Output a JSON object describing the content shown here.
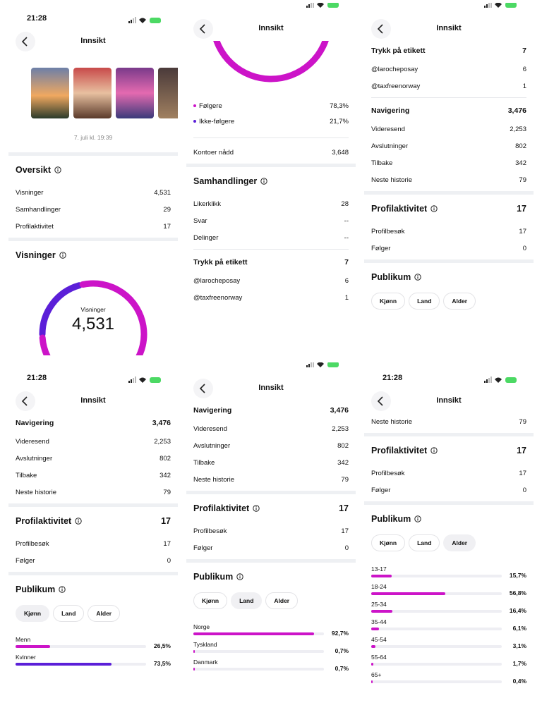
{
  "panels": [
    {
      "time": "21:28",
      "title": "Innsikt",
      "date": "7. juli kl. 19:39",
      "items": [
        {
          "section": "Oversikt"
        },
        {
          "label": "Visninger",
          "value": "4,531"
        },
        {
          "label": "Samhandlinger",
          "value": "29"
        },
        {
          "label": "Profilaktivitet",
          "value": "17"
        },
        {
          "section": "Visninger"
        },
        {
          "gauge": {
            "label": "Visninger",
            "value": "4,531"
          }
        }
      ]
    },
    {
      "title": "Innsikt",
      "items": [
        {
          "legend": [
            {
              "label": "Følgere",
              "value": 78.3,
              "value_label": "78,3%",
              "color": "#cc14c8"
            },
            {
              "label": "Ikke-følgere",
              "value": 21.7,
              "value_label": "21,7%",
              "color": "#5b1fd8"
            }
          ]
        },
        {
          "label": "Kontoer nådd",
          "value": "3,648"
        },
        {
          "section": "Samhandlinger"
        },
        {
          "label": "Likerklikk",
          "value": "28"
        },
        {
          "label": "Svar",
          "value": "--"
        },
        {
          "label": "Delinger",
          "value": "--"
        },
        {
          "group": "Trykk på etikett",
          "total": "7"
        },
        {
          "label": "@larocheposay",
          "value": "6"
        },
        {
          "label": "@taxfreenorway",
          "value": "1"
        }
      ]
    },
    {
      "title": "Innsikt",
      "items": [
        {
          "group": "Trykk på etikett",
          "total": "7"
        },
        {
          "label": "@larocheposay",
          "value": "6"
        },
        {
          "label": "@taxfreenorway",
          "value": "1"
        },
        {
          "group": "Navigering",
          "total": "3,476"
        },
        {
          "label": "Videresend",
          "value": "2,253"
        },
        {
          "label": "Avslutninger",
          "value": "802"
        },
        {
          "label": "Tilbake",
          "value": "342"
        },
        {
          "label": "Neste historie",
          "value": "79"
        },
        {
          "section": "Profilaktivitet",
          "total": "17"
        },
        {
          "label": "Profilbesøk",
          "value": "17"
        },
        {
          "label": "Følger",
          "value": "0"
        },
        {
          "section": "Publikum"
        },
        {
          "tabs": [
            "Kjønn",
            "Land",
            "Alder"
          ]
        }
      ]
    },
    {
      "time": "21:28",
      "title": "Innsikt",
      "items": [
        {
          "group": "Navigering",
          "total": "3,476"
        },
        {
          "label": "Videresend",
          "value": "2,253"
        },
        {
          "label": "Avslutninger",
          "value": "802"
        },
        {
          "label": "Tilbake",
          "value": "342"
        },
        {
          "label": "Neste historie",
          "value": "79"
        },
        {
          "section": "Profilaktivitet",
          "total": "17"
        },
        {
          "label": "Profilbesøk",
          "value": "17"
        },
        {
          "label": "Følger",
          "value": "0"
        },
        {
          "section": "Publikum"
        },
        {
          "tabs": [
            "Kjønn",
            "Land",
            "Alder"
          ],
          "selected": 0
        },
        {
          "bars": [
            {
              "label": "Menn",
              "value": 26.5,
              "value_label": "26,5%",
              "color": "#cc14c8"
            },
            {
              "label": "Kvinner",
              "value": 73.5,
              "value_label": "73,5%",
              "color": "#5b1fd8"
            }
          ]
        }
      ]
    },
    {
      "title": "Innsikt",
      "items": [
        {
          "group": "Navigering",
          "total": "3,476"
        },
        {
          "label": "Videresend",
          "value": "2,253"
        },
        {
          "label": "Avslutninger",
          "value": "802"
        },
        {
          "label": "Tilbake",
          "value": "342"
        },
        {
          "label": "Neste historie",
          "value": "79"
        },
        {
          "section": "Profilaktivitet",
          "total": "17"
        },
        {
          "label": "Profilbesøk",
          "value": "17"
        },
        {
          "label": "Følger",
          "value": "0"
        },
        {
          "section": "Publikum"
        },
        {
          "tabs": [
            "Kjønn",
            "Land",
            "Alder"
          ],
          "selected": 1
        },
        {
          "bars": [
            {
              "label": "Norge",
              "value": 92.7,
              "value_label": "92,7%",
              "color": "#cc14c8"
            },
            {
              "label": "Tyskland",
              "value": 0.7,
              "value_label": "0,7%",
              "color": "#cc14c8"
            },
            {
              "label": "Danmark",
              "value": 0.7,
              "value_label": "0,7%",
              "color": "#cc14c8"
            }
          ]
        }
      ]
    },
    {
      "time": "21:28",
      "title": "Innsikt",
      "items": [
        {
          "label": "Neste historie",
          "value": "79"
        },
        {
          "section": "Profilaktivitet",
          "total": "17"
        },
        {
          "label": "Profilbesøk",
          "value": "17"
        },
        {
          "label": "Følger",
          "value": "0"
        },
        {
          "section": "Publikum"
        },
        {
          "tabs": [
            "Kjønn",
            "Land",
            "Alder"
          ],
          "selected": 2
        },
        {
          "bars": [
            {
              "label": "13-17",
              "value": 15.7,
              "value_label": "15,7%",
              "color": "#cc14c8"
            },
            {
              "label": "18-24",
              "value": 56.8,
              "value_label": "56,8%",
              "color": "#cc14c8"
            },
            {
              "label": "25-34",
              "value": 16.4,
              "value_label": "16,4%",
              "color": "#cc14c8"
            },
            {
              "label": "35-44",
              "value": 6.1,
              "value_label": "6,1%",
              "color": "#cc14c8"
            },
            {
              "label": "45-54",
              "value": 3.1,
              "value_label": "3,1%",
              "color": "#cc14c8"
            },
            {
              "label": "55-64",
              "value": 1.7,
              "value_label": "1,7%",
              "color": "#cc14c8"
            },
            {
              "label": "65+",
              "value": 0.4,
              "value_label": "0,4%",
              "color": "#cc14c8"
            }
          ]
        }
      ]
    }
  ]
}
